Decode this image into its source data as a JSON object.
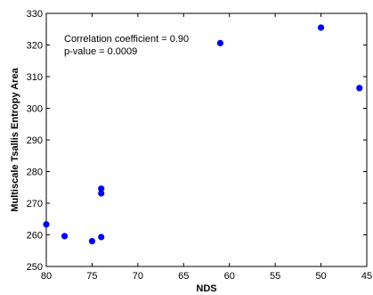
{
  "chart_data": {
    "type": "scatter",
    "xlabel": "NDS",
    "ylabel": "Multiscale Tsallis Entropy Area",
    "xlim": [
      80,
      45
    ],
    "ylim": [
      250,
      330
    ],
    "x_reversed": true,
    "x_ticks": [
      80,
      75,
      70,
      65,
      60,
      55,
      50,
      45
    ],
    "y_ticks": [
      250,
      260,
      270,
      280,
      290,
      300,
      310,
      320,
      330
    ],
    "x_tick_labels": [
      "80",
      "75",
      "70",
      "65",
      "60",
      "55",
      "50",
      "45"
    ],
    "y_tick_labels": [
      "250",
      "260",
      "270",
      "280",
      "290",
      "300",
      "310",
      "320",
      "330"
    ],
    "grid": false,
    "marker_color": "#0000ff",
    "annotations": [
      "Correlation coefficient = 0.90",
      "p-value = 0.0009"
    ],
    "points": [
      {
        "x": 80.0,
        "y": 263.3
      },
      {
        "x": 78.0,
        "y": 259.6
      },
      {
        "x": 75.0,
        "y": 258.0
      },
      {
        "x": 74.0,
        "y": 259.3
      },
      {
        "x": 74.0,
        "y": 273.1
      },
      {
        "x": 74.0,
        "y": 274.6
      },
      {
        "x": 61.0,
        "y": 320.6
      },
      {
        "x": 50.0,
        "y": 325.5
      },
      {
        "x": 45.8,
        "y": 306.4
      }
    ]
  }
}
